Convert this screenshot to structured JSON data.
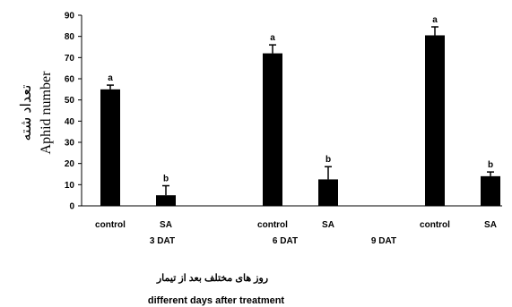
{
  "chart_data": {
    "type": "bar",
    "ylabel_fa": "تعداد شته",
    "ylabel": "Aphid number",
    "xlabel_fa": "روز های مختلف بعد از تیمار",
    "xlabel": "different days after treatment",
    "ylim": [
      0,
      90
    ],
    "yticks": [
      0,
      10,
      20,
      30,
      40,
      50,
      60,
      70,
      80,
      90
    ],
    "bars": [
      {
        "category": "control",
        "value": 55,
        "error": 2,
        "label": "a"
      },
      {
        "category": "SA",
        "value": 5,
        "error": 4.5,
        "label": "b"
      },
      {
        "category": "control",
        "value": 72,
        "error": 4,
        "label": "a"
      },
      {
        "category": "SA",
        "value": 12.5,
        "error": 6,
        "label": "b"
      },
      {
        "category": "control",
        "value": 80.5,
        "error": 4,
        "label": "a"
      },
      {
        "category": "SA",
        "value": 14,
        "error": 2,
        "label": "b"
      }
    ],
    "group_labels": [
      "3 DAT",
      "6 DAT",
      "9 DAT"
    ],
    "grid": false,
    "legend": "none"
  }
}
